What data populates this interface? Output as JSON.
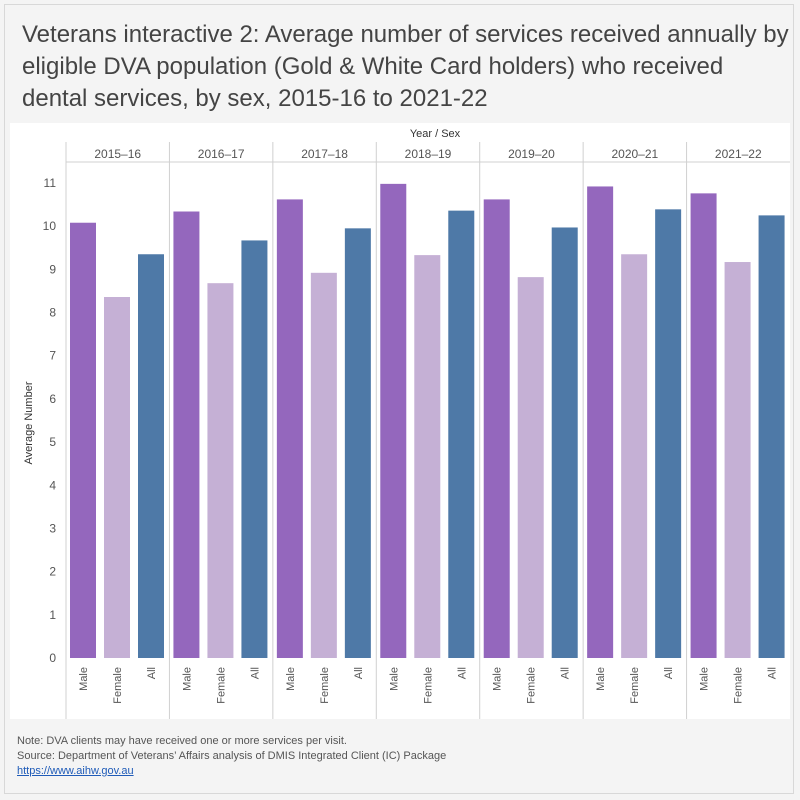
{
  "title": "Veterans interactive 2: Average number of services received annually by eligible DVA population (Gold & White Card holders) who received dental services, by sex, 2015-16 to 2021-22",
  "notes": {
    "note": "Note: DVA clients may have received one or more services per visit.",
    "source": "Source: Department of Veterans’ Affairs analysis of DMIS Integrated Client (IC) Package",
    "link": "https://www.aihw.gov.au"
  },
  "chart_data": {
    "type": "bar",
    "column_header": "Year / Sex",
    "ylabel": "Average Number",
    "ylim": [
      0,
      11
    ],
    "yticks": [
      0,
      1,
      2,
      3,
      4,
      5,
      6,
      7,
      8,
      9,
      10,
      11
    ],
    "sex_labels": [
      "Male",
      "Female",
      "All"
    ],
    "colors": {
      "Male": "#9467bd",
      "Female": "#c5b0d5",
      "All": "#4e79a7"
    },
    "groups": [
      {
        "year": "2015–16",
        "values": [
          10.08,
          8.36,
          9.35
        ]
      },
      {
        "year": "2016–17",
        "values": [
          10.34,
          8.68,
          9.67
        ]
      },
      {
        "year": "2017–18",
        "values": [
          10.62,
          8.92,
          9.95
        ]
      },
      {
        "year": "2018–19",
        "values": [
          10.98,
          9.33,
          10.36
        ]
      },
      {
        "year": "2019–20",
        "values": [
          10.62,
          8.82,
          9.97
        ]
      },
      {
        "year": "2020–21",
        "values": [
          10.92,
          9.35,
          10.39
        ]
      },
      {
        "year": "2021–22",
        "values": [
          10.76,
          9.17,
          10.25
        ]
      }
    ]
  }
}
